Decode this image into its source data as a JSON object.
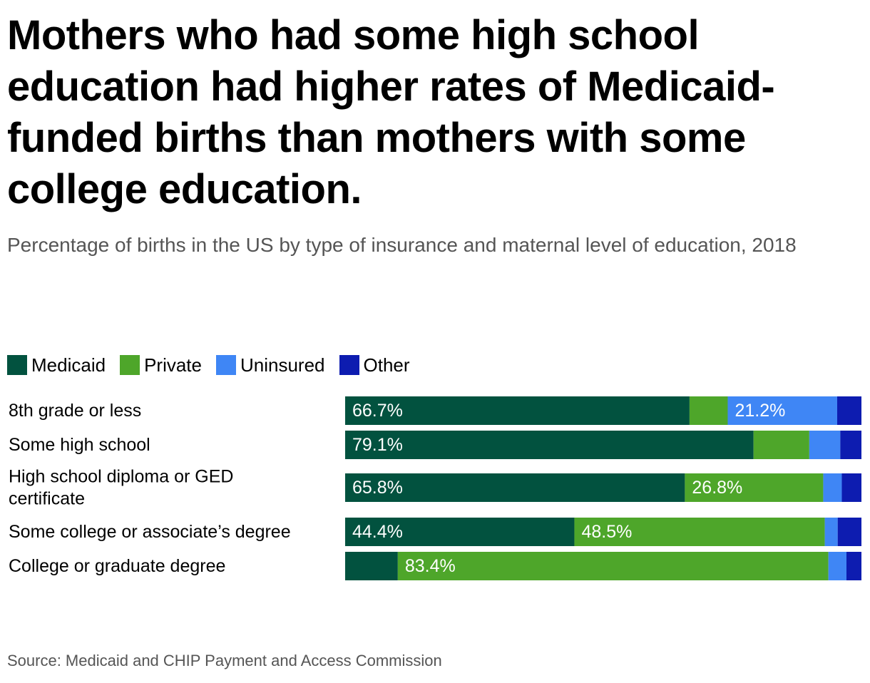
{
  "title": "Mothers who had some high school education had higher rates of Medicaid-funded births than mothers with some college education.",
  "subtitle": "Percentage of births in the US by type of insurance and maternal level of education, 2018",
  "source": "Source: Medicaid and CHIP Payment and Access Commission",
  "legend": [
    {
      "name": "Medicaid",
      "color": "#02523f"
    },
    {
      "name": "Private",
      "color": "#4ea62a"
    },
    {
      "name": "Uninsured",
      "color": "#3f86f5"
    },
    {
      "name": "Other",
      "color": "#0d1cb0"
    }
  ],
  "chart_data": {
    "type": "bar",
    "orientation": "horizontal",
    "stacked": true,
    "xlim": [
      0,
      100
    ],
    "grid": false,
    "legend_position": "top-left",
    "categories": [
      [
        "8th grade or less"
      ],
      [
        "Some high school"
      ],
      [
        "High school diploma or GED",
        "certificate"
      ],
      [
        "Some college or associate’s degree"
      ],
      [
        "College or graduate degree"
      ]
    ],
    "series": [
      {
        "name": "Medicaid",
        "color": "#02523f",
        "values": [
          66.7,
          79.1,
          65.8,
          44.4,
          10.2
        ],
        "labels": [
          "66.7%",
          "79.1%",
          "65.8%",
          "44.4%",
          ""
        ]
      },
      {
        "name": "Private",
        "color": "#4ea62a",
        "values": [
          7.4,
          10.8,
          26.8,
          48.5,
          83.4
        ],
        "labels": [
          "",
          "",
          "26.8%",
          "48.5%",
          "83.4%"
        ]
      },
      {
        "name": "Uninsured",
        "color": "#3f86f5",
        "values": [
          21.2,
          6.0,
          3.6,
          2.5,
          3.5
        ],
        "labels": [
          "21.2%",
          "",
          "",
          "",
          ""
        ]
      },
      {
        "name": "Other",
        "color": "#0d1cb0",
        "values": [
          4.7,
          4.1,
          3.8,
          4.6,
          2.9
        ],
        "labels": [
          "",
          "",
          "",
          "",
          ""
        ]
      }
    ]
  }
}
